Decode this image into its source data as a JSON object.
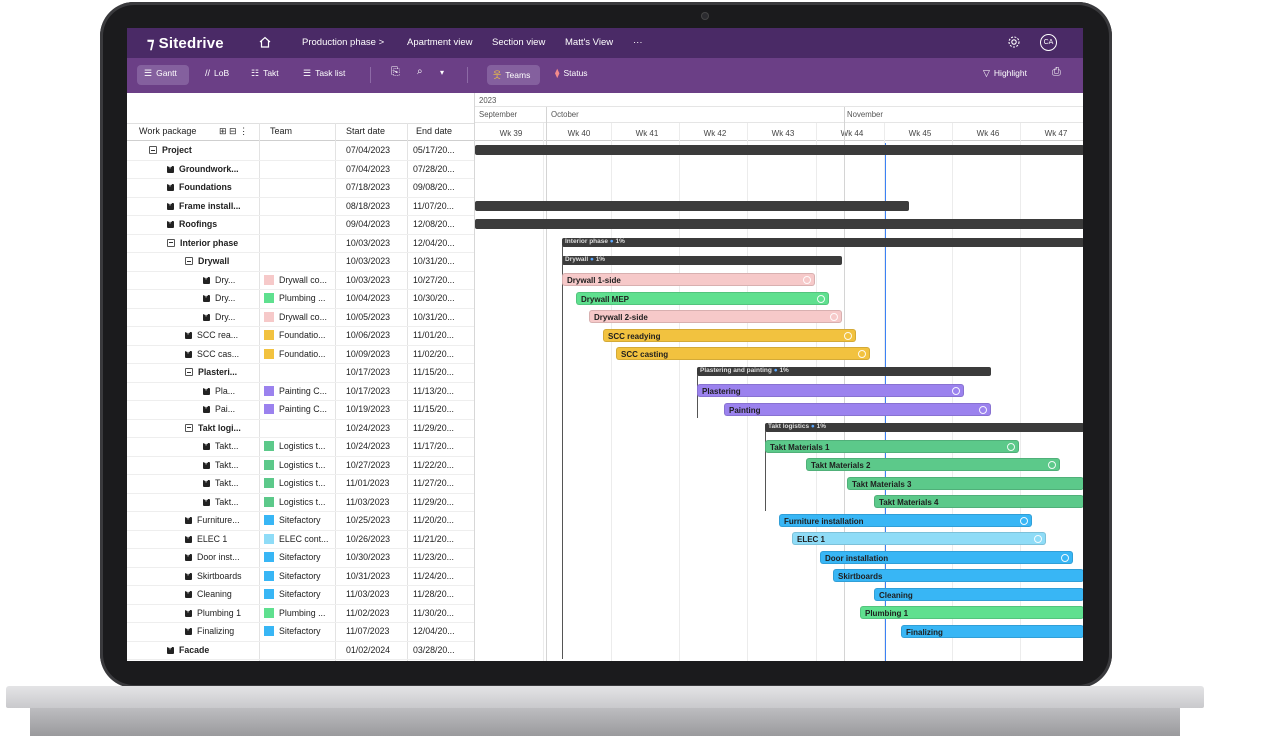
{
  "app": {
    "name": "Sitedrive",
    "avatar": "CA"
  },
  "topbar": {
    "breadcrumbs": [
      "Production phase >",
      "Apartment view",
      "Section view",
      "Matt's View",
      "···"
    ]
  },
  "toolbar": {
    "gantt": "Gantt",
    "lob": "LoB",
    "takt": "Takt",
    "tasklist": "Task list",
    "teams": "Teams",
    "status": "Status",
    "highlight": "Highlight"
  },
  "table": {
    "headers": {
      "wp": "Work package",
      "team": "Team",
      "start": "Start date",
      "end": "End date"
    },
    "rows": [
      {
        "wp": "Project",
        "team": "",
        "start": "07/04/2023",
        "end": "05/17/20...",
        "indent": 0,
        "expand": "minus",
        "bold": true,
        "color": ""
      },
      {
        "wp": "Groundwork...",
        "team": "",
        "start": "07/04/2023",
        "end": "07/28/20...",
        "indent": 1,
        "expand": "plus",
        "bold": true,
        "color": ""
      },
      {
        "wp": "Foundations",
        "team": "",
        "start": "07/18/2023",
        "end": "09/08/20...",
        "indent": 1,
        "expand": "plus",
        "bold": true,
        "color": ""
      },
      {
        "wp": "Frame install...",
        "team": "",
        "start": "08/18/2023",
        "end": "11/07/20...",
        "indent": 1,
        "expand": "plus",
        "bold": true,
        "color": ""
      },
      {
        "wp": "Roofings",
        "team": "",
        "start": "09/04/2023",
        "end": "12/08/20...",
        "indent": 1,
        "expand": "plus",
        "bold": true,
        "color": ""
      },
      {
        "wp": "Interior phase",
        "team": "",
        "start": "10/03/2023",
        "end": "12/04/20...",
        "indent": 1,
        "expand": "minus",
        "bold": true,
        "color": ""
      },
      {
        "wp": "Drywall",
        "team": "",
        "start": "10/03/2023",
        "end": "10/31/20...",
        "indent": 2,
        "expand": "minus",
        "bold": true,
        "color": ""
      },
      {
        "wp": "Dry...",
        "team": "Drywall co...",
        "start": "10/03/2023",
        "end": "10/27/20...",
        "indent": 3,
        "expand": "plus",
        "bold": false,
        "color": "#f6c9c9"
      },
      {
        "wp": "Dry...",
        "team": "Plumbing ...",
        "start": "10/04/2023",
        "end": "10/30/20...",
        "indent": 3,
        "expand": "plus",
        "bold": false,
        "color": "#5fe08f"
      },
      {
        "wp": "Dry...",
        "team": "Drywall co...",
        "start": "10/05/2023",
        "end": "10/31/20...",
        "indent": 3,
        "expand": "plus",
        "bold": false,
        "color": "#f6c9c9"
      },
      {
        "wp": "SCC rea...",
        "team": "Foundatio...",
        "start": "10/06/2023",
        "end": "11/01/20...",
        "indent": 2,
        "expand": "plus",
        "bold": false,
        "color": "#f2c23f"
      },
      {
        "wp": "SCC cas...",
        "team": "Foundatio...",
        "start": "10/09/2023",
        "end": "11/02/20...",
        "indent": 2,
        "expand": "plus",
        "bold": false,
        "color": "#f2c23f"
      },
      {
        "wp": "Plasteri...",
        "team": "",
        "start": "10/17/2023",
        "end": "11/15/20...",
        "indent": 2,
        "expand": "minus",
        "bold": true,
        "color": ""
      },
      {
        "wp": "Pla...",
        "team": "Painting C...",
        "start": "10/17/2023",
        "end": "11/13/20...",
        "indent": 3,
        "expand": "plus",
        "bold": false,
        "color": "#9b82ee"
      },
      {
        "wp": "Pai...",
        "team": "Painting C...",
        "start": "10/19/2023",
        "end": "11/15/20...",
        "indent": 3,
        "expand": "plus",
        "bold": false,
        "color": "#9b82ee"
      },
      {
        "wp": "Takt logi...",
        "team": "",
        "start": "10/24/2023",
        "end": "11/29/20...",
        "indent": 2,
        "expand": "minus",
        "bold": true,
        "color": ""
      },
      {
        "wp": "Takt...",
        "team": "Logistics t...",
        "start": "10/24/2023",
        "end": "11/17/20...",
        "indent": 3,
        "expand": "plus",
        "bold": false,
        "color": "#5cc98a"
      },
      {
        "wp": "Takt...",
        "team": "Logistics t...",
        "start": "10/27/2023",
        "end": "11/22/20...",
        "indent": 3,
        "expand": "plus",
        "bold": false,
        "color": "#5cc98a"
      },
      {
        "wp": "Takt...",
        "team": "Logistics t...",
        "start": "11/01/2023",
        "end": "11/27/20...",
        "indent": 3,
        "expand": "plus",
        "bold": false,
        "color": "#5cc98a"
      },
      {
        "wp": "Takt...",
        "team": "Logistics t...",
        "start": "11/03/2023",
        "end": "11/29/20...",
        "indent": 3,
        "expand": "plus",
        "bold": false,
        "color": "#5cc98a"
      },
      {
        "wp": "Furniture...",
        "team": "Sitefactory",
        "start": "10/25/2023",
        "end": "11/20/20...",
        "indent": 2,
        "expand": "plus",
        "bold": false,
        "color": "#38b6f5"
      },
      {
        "wp": "ELEC 1",
        "team": "ELEC cont...",
        "start": "10/26/2023",
        "end": "11/21/20...",
        "indent": 2,
        "expand": "plus",
        "bold": false,
        "color": "#8fdcf7"
      },
      {
        "wp": "Door inst...",
        "team": "Sitefactory",
        "start": "10/30/2023",
        "end": "11/23/20...",
        "indent": 2,
        "expand": "plus",
        "bold": false,
        "color": "#38b6f5"
      },
      {
        "wp": "Skirtboards",
        "team": "Sitefactory",
        "start": "10/31/2023",
        "end": "11/24/20...",
        "indent": 2,
        "expand": "plus",
        "bold": false,
        "color": "#38b6f5"
      },
      {
        "wp": "Cleaning",
        "team": "Sitefactory",
        "start": "11/03/2023",
        "end": "11/28/20...",
        "indent": 2,
        "expand": "plus",
        "bold": false,
        "color": "#38b6f5"
      },
      {
        "wp": "Plumbing 1",
        "team": "Plumbing ...",
        "start": "11/02/2023",
        "end": "11/30/20...",
        "indent": 2,
        "expand": "plus",
        "bold": false,
        "color": "#5fe08f"
      },
      {
        "wp": "Finalizing",
        "team": "Sitefactory",
        "start": "11/07/2023",
        "end": "12/04/20...",
        "indent": 2,
        "expand": "plus",
        "bold": false,
        "color": "#38b6f5"
      },
      {
        "wp": "Facade",
        "team": "",
        "start": "01/02/2024",
        "end": "03/28/20...",
        "indent": 1,
        "expand": "plus",
        "bold": true,
        "color": ""
      }
    ]
  },
  "gantt": {
    "year": "2023",
    "months": [
      {
        "label": "September"
      },
      {
        "label": "October"
      },
      {
        "label": "November"
      }
    ],
    "weeks": [
      "Wk 39",
      "Wk 40",
      "Wk 41",
      "Wk 42",
      "Wk 43",
      "Wk 44",
      "Wk 45",
      "Wk 46",
      "Wk 47"
    ],
    "summaries": [
      {
        "label": "Interior phase",
        "pct": "1%"
      },
      {
        "label": "Drywall",
        "pct": "1%"
      },
      {
        "label": "Plastering and painting",
        "pct": "1%"
      },
      {
        "label": "Takt logistics",
        "pct": "1%"
      }
    ],
    "bars": [
      {
        "label": "Drywall 1-side",
        "color": "#f6c9c9"
      },
      {
        "label": "Drywall MEP",
        "color": "#5fe08f"
      },
      {
        "label": "Drywall 2-side",
        "color": "#f6c9c9"
      },
      {
        "label": "SCC readying",
        "color": "#f2c23f"
      },
      {
        "label": "SCC casting",
        "color": "#f2c23f"
      },
      {
        "label": "Plastering",
        "color": "#9b82ee"
      },
      {
        "label": "Painting",
        "color": "#9b82ee"
      },
      {
        "label": "Takt Materials 1",
        "color": "#5cc98a"
      },
      {
        "label": "Takt Materials 2",
        "color": "#5cc98a"
      },
      {
        "label": "Takt Materials 3",
        "color": "#5cc98a"
      },
      {
        "label": "Takt Materials 4",
        "color": "#5cc98a"
      },
      {
        "label": "Furniture installation",
        "color": "#38b6f5"
      },
      {
        "label": "ELEC 1",
        "color": "#8fdcf7"
      },
      {
        "label": "Door installation",
        "color": "#38b6f5"
      },
      {
        "label": "Skirtboards",
        "color": "#38b6f5"
      },
      {
        "label": "Cleaning",
        "color": "#38b6f5"
      },
      {
        "label": "Plumbing 1",
        "color": "#5fe08f"
      },
      {
        "label": "Finalizing",
        "color": "#38b6f5"
      }
    ]
  }
}
